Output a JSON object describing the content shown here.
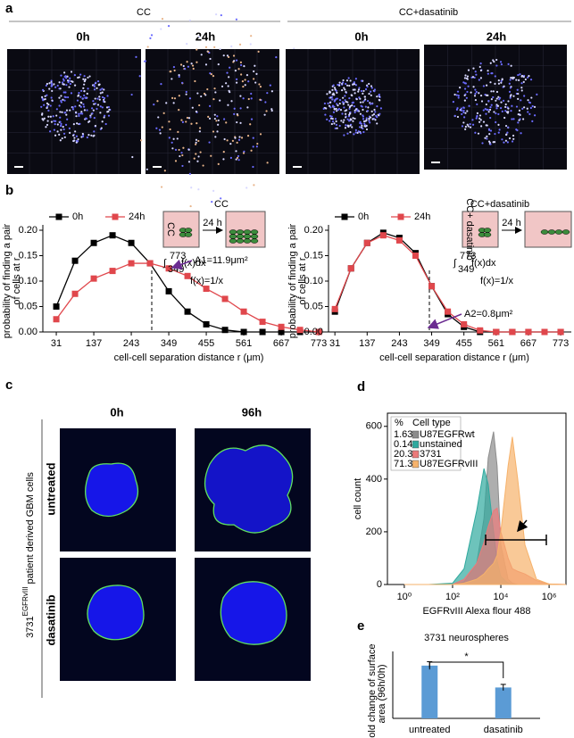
{
  "figure": {
    "panel_labels": [
      "a",
      "b",
      "c",
      "d",
      "e"
    ],
    "a": {
      "groups": [
        "CC",
        "CC+dasatinib"
      ],
      "times": [
        "0h",
        "24h",
        "0h",
        "24h"
      ]
    },
    "c": {
      "times": [
        "0h",
        "96h"
      ],
      "rows": [
        "untreated",
        "dasatinib"
      ],
      "cell_line": "3731",
      "cell_line_sup": "EGFRvIII",
      "cell_desc": "patient derived GBM cells"
    }
  },
  "chart_data": [
    {
      "type": "line",
      "title": "CC",
      "x_label": "cell-cell separation distance  r (μm)",
      "y_label": [
        "probability of finding a pair",
        "of cells at r"
      ],
      "x": [
        31,
        84,
        137,
        190,
        243,
        296,
        349,
        402,
        455,
        508,
        561,
        614,
        667,
        720,
        773
      ],
      "xlim": [
        -7,
        793
      ],
      "xticks": [
        31,
        137,
        243,
        349,
        455,
        561,
        667,
        773
      ],
      "ylim": [
        0,
        0.2
      ],
      "yticks": [
        {
          "value": 0,
          "label": "0.00"
        },
        {
          "value": 0.05,
          "label": "0.05"
        },
        {
          "value": 0.1,
          "label": "0.10"
        },
        {
          "value": 0.15,
          "label": "0.15"
        },
        {
          "value": 0.2,
          "label": "0.20"
        }
      ],
      "series": [
        {
          "name": "0h",
          "color": "#000000",
          "values": [
            0.05,
            0.14,
            0.175,
            0.19,
            0.175,
            0.135,
            0.08,
            0.04,
            0.015,
            0.004,
            0,
            0,
            0,
            0,
            0
          ]
        },
        {
          "name": "24h",
          "color": "#e0474c",
          "values": [
            0.025,
            0.075,
            0.105,
            0.12,
            0.135,
            0.135,
            0.125,
            0.11,
            0.085,
            0.065,
            0.04,
            0.02,
            0.01,
            0.004,
            0
          ]
        }
      ],
      "inset_labels": [
        "CC",
        "24 h"
      ],
      "integral": {
        "upper": "773",
        "lower": "349",
        "expr": "f(x)dx",
        "def": "f(x)=1/x"
      },
      "annotation": "A1=11.9μm²"
    },
    {
      "type": "line",
      "title": "CC+dasatinib",
      "x_label": "cell-cell separation distance  r (μm)",
      "y_label": [
        "probability of finding a pair",
        "of cells at r"
      ],
      "x": [
        31,
        84,
        137,
        190,
        243,
        296,
        349,
        402,
        455,
        508,
        561,
        614,
        667,
        720,
        773
      ],
      "xlim": [
        10,
        808
      ],
      "xticks": [
        31,
        137,
        243,
        349,
        455,
        561,
        667,
        773
      ],
      "ylim": [
        0,
        0.2
      ],
      "yticks": [
        {
          "value": 0,
          "label": "0.00"
        },
        {
          "value": 0.05,
          "label": "0.05"
        },
        {
          "value": 0.1,
          "label": "0.10"
        },
        {
          "value": 0.15,
          "label": "0.15"
        },
        {
          "value": 0.2,
          "label": "0.20"
        }
      ],
      "series": [
        {
          "name": "0h",
          "color": "#000000",
          "values": [
            0.04,
            0.125,
            0.175,
            0.195,
            0.185,
            0.155,
            0.09,
            0.035,
            0.01,
            0,
            0,
            0,
            0,
            0,
            0
          ]
        },
        {
          "name": "24h",
          "color": "#e0474c",
          "values": [
            0.045,
            0.125,
            0.175,
            0.19,
            0.18,
            0.15,
            0.09,
            0.04,
            0.015,
            0.003,
            0,
            0,
            0,
            0,
            0
          ]
        }
      ],
      "inset_labels": [
        "CC+ dasatinib",
        "24 h"
      ],
      "integral": {
        "upper": "773",
        "lower": "349",
        "expr": "f(x)dx",
        "def": "f(x)=1/x"
      },
      "annotation": "A2=0.8μm²"
    },
    {
      "type": "area",
      "x_label": "EGFRvIII Alexa flour 488",
      "y_label": "cell count",
      "log_x": true,
      "x": [
        1,
        10,
        100,
        300,
        1000,
        2000,
        3000,
        5000,
        7000,
        10000,
        20000,
        30000,
        50000,
        100000,
        300000,
        1000000,
        5000000
      ],
      "xlim": [
        0.2,
        5000000
      ],
      "xticks": [
        {
          "value": 1,
          "label": "10⁰"
        },
        {
          "value": 100,
          "label": "10²"
        },
        {
          "value": 10000,
          "label": "10⁴"
        },
        {
          "value": 1000000,
          "label": "10⁶"
        }
      ],
      "ylim": [
        0,
        650
      ],
      "yticks": [
        0,
        200,
        400,
        600
      ],
      "legend_headers": [
        "%",
        "Cell type"
      ],
      "series": [
        {
          "name": "U87EGFRwt",
          "color": "#8c8c8c",
          "percent": 1.63,
          "values": [
            0,
            0,
            0,
            10,
            80,
            250,
            480,
            580,
            450,
            150,
            20,
            5,
            0,
            0,
            0,
            0,
            0
          ]
        },
        {
          "name": "unstained",
          "color": "#2fa99e",
          "percent": 0.14,
          "values": [
            0,
            0,
            5,
            60,
            280,
            440,
            380,
            200,
            90,
            30,
            5,
            0,
            0,
            0,
            0,
            0,
            0
          ]
        },
        {
          "name": "3731",
          "color": "#ec7a7a",
          "percent": 20.3,
          "values": [
            0,
            0,
            0,
            20,
            80,
            160,
            220,
            280,
            290,
            200,
            100,
            60,
            50,
            40,
            15,
            2,
            0
          ]
        },
        {
          "name": "U87EGFRvIII",
          "color": "#f6b26b",
          "percent": 71.3,
          "values": [
            0,
            0,
            0,
            5,
            20,
            40,
            60,
            80,
            110,
            200,
            450,
            560,
            400,
            150,
            20,
            2,
            0
          ]
        }
      ]
    },
    {
      "type": "bar",
      "title": "3731 neurospheres",
      "y_label": [
        "Fold change of surface",
        "area (96h/0h)"
      ],
      "categories": [
        "untreated",
        "dasatinib"
      ],
      "values": [
        2.05,
        1.2
      ],
      "errors": [
        0.15,
        0.12
      ],
      "color": "#5b9bd5",
      "ylim": [
        0,
        2.6
      ],
      "significance": "*"
    }
  ]
}
